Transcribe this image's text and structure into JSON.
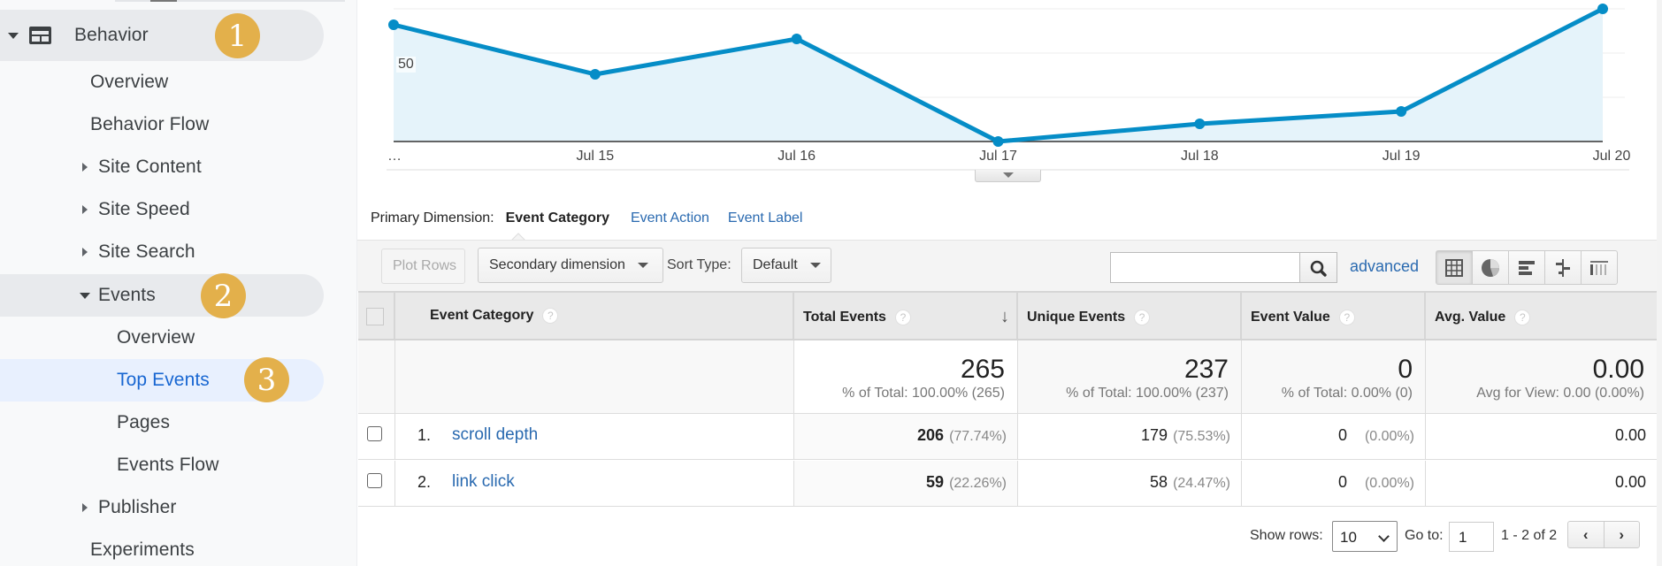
{
  "sidebar": {
    "items": [
      {
        "label": "Behavior",
        "level": 0,
        "expanded": true,
        "badge": "1"
      },
      {
        "label": "Overview",
        "level": 1
      },
      {
        "label": "Behavior Flow",
        "level": 1
      },
      {
        "label": "Site Content",
        "level": 1,
        "collapsed": true
      },
      {
        "label": "Site Speed",
        "level": 1,
        "collapsed": true
      },
      {
        "label": "Site Search",
        "level": 1,
        "collapsed": true
      },
      {
        "label": "Events",
        "level": 1,
        "expanded": true,
        "badge": "2"
      },
      {
        "label": "Overview",
        "level": 2
      },
      {
        "label": "Top Events",
        "level": 2,
        "active": true,
        "badge": "3"
      },
      {
        "label": "Pages",
        "level": 2
      },
      {
        "label": "Events Flow",
        "level": 2
      },
      {
        "label": "Publisher",
        "level": 1,
        "collapsed": true
      },
      {
        "label": "Experiments",
        "level": 1
      }
    ],
    "badges": [
      "1",
      "2",
      "3"
    ]
  },
  "chart_data": {
    "type": "area",
    "title": "",
    "categories": [
      "…",
      "Jul 15",
      "Jul 16",
      "Jul 17",
      "Jul 18",
      "Jul 19",
      "Jul 20"
    ],
    "series": [
      {
        "name": "Total Events",
        "values": [
          66,
          38,
          58,
          0,
          10,
          17,
          75
        ]
      }
    ],
    "xlabel": "",
    "ylabel": "",
    "y_tick_labels": [
      "50"
    ],
    "ylim": [
      0,
      75
    ],
    "grid": true,
    "color": "#058dc7",
    "fill": "#e5f3fa"
  },
  "primary_dimension": {
    "label": "Primary Dimension:",
    "selected": "Event Category",
    "options": [
      "Event Action",
      "Event Label"
    ]
  },
  "toolbar": {
    "plot_rows": "Plot Rows",
    "secondary_dimension": "Secondary dimension",
    "sort_type_label": "Sort Type:",
    "sort_type_value": "Default",
    "search_placeholder": "",
    "search_value": "",
    "advanced": "advanced",
    "views": [
      "table-view",
      "pie-view",
      "performance-view",
      "comparison-view",
      "pivot-view"
    ]
  },
  "table": {
    "columns": [
      {
        "label": "Event Category",
        "help": "?"
      },
      {
        "label": "Total Events",
        "help": "?",
        "sorted": "desc"
      },
      {
        "label": "Unique Events",
        "help": "?"
      },
      {
        "label": "Event Value",
        "help": "?"
      },
      {
        "label": "Avg. Value",
        "help": "?"
      }
    ],
    "totals": {
      "total_events": {
        "value": "265",
        "sub": "% of Total: 100.00% (265)"
      },
      "unique_events": {
        "value": "237",
        "sub": "% of Total: 100.00% (237)"
      },
      "event_value": {
        "value": "0",
        "sub": "% of Total: 0.00% (0)"
      },
      "avg_value": {
        "value": "0.00",
        "sub": "Avg for View: 0.00 (0.00%)"
      }
    },
    "rows": [
      {
        "index": "1.",
        "category": "scroll depth",
        "total_events": "206",
        "total_pct": "(77.74%)",
        "unique_events": "179",
        "unique_pct": "(75.53%)",
        "event_value": "0",
        "event_value_pct": "(0.00%)",
        "avg_value": "0.00"
      },
      {
        "index": "2.",
        "category": "link click",
        "total_events": "59",
        "total_pct": "(22.26%)",
        "unique_events": "58",
        "unique_pct": "(24.47%)",
        "event_value": "0",
        "event_value_pct": "(0.00%)",
        "avg_value": "0.00"
      }
    ]
  },
  "pagination": {
    "show_rows_label": "Show rows:",
    "show_rows_value": "10",
    "goto_label": "Go to:",
    "goto_value": "1",
    "range": "1 - 2 of 2",
    "prev": "‹",
    "next": "›"
  },
  "colors": {
    "accent_link": "#2a6ab0",
    "line": "#058dc7",
    "badge": "#e3b04b",
    "active_nav": "#1967d2"
  }
}
